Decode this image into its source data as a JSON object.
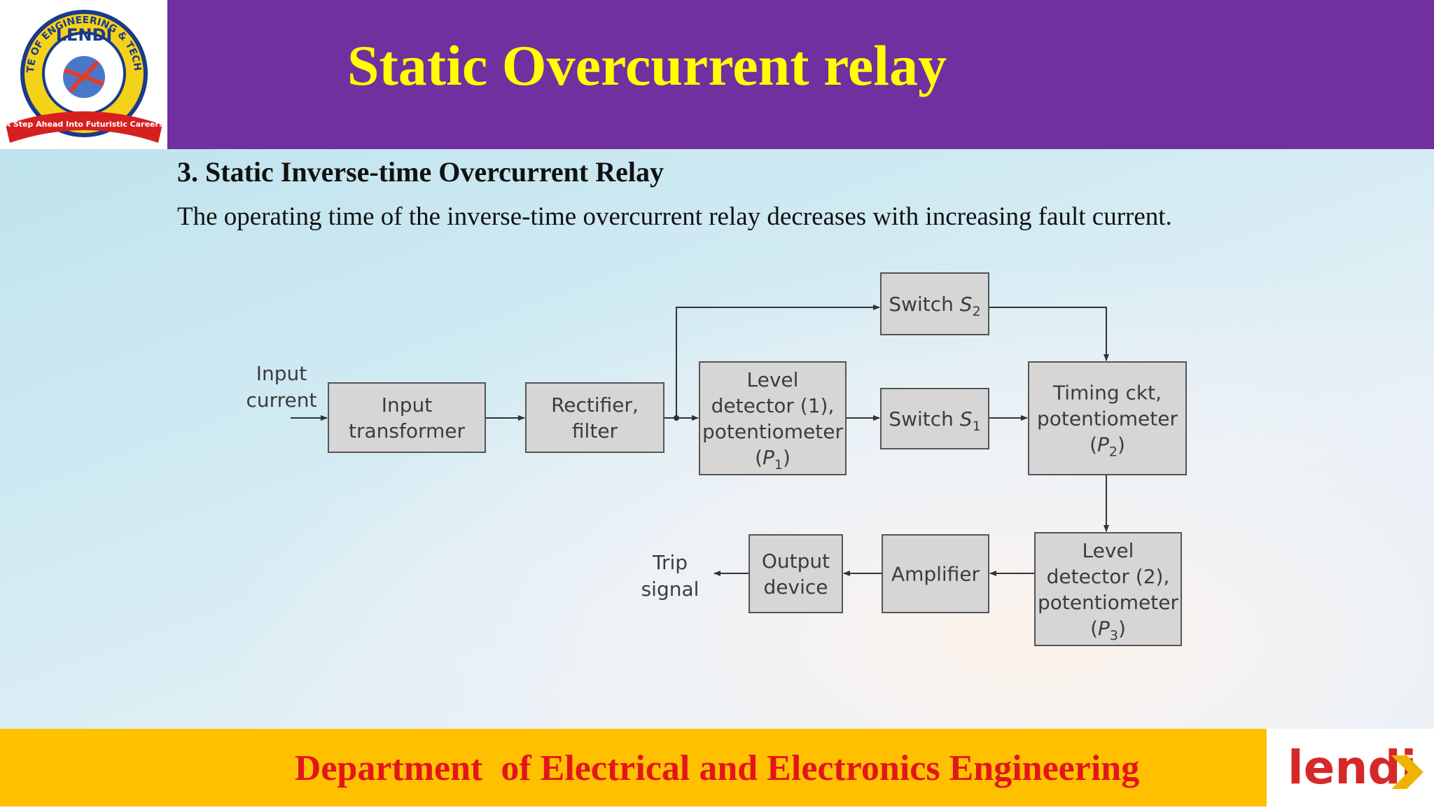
{
  "header": {
    "title": "Static Overcurrent relay"
  },
  "logo": {
    "name": "LENDI",
    "ring": "INSTITUTE OF ENGINEERING & TECHNOLOGY",
    "motto": "A Step Ahead Into Futuristic Careers"
  },
  "content": {
    "heading": "3. Static Inverse-time Overcurrent Relay",
    "text": "The operating time of the inverse-time overcurrent relay decreases with increasing fault current."
  },
  "diagram": {
    "input_label": [
      "Input",
      "current"
    ],
    "output_label": [
      "Trip",
      "signal"
    ],
    "nodes": [
      {
        "lines": [
          "Input",
          "transformer"
        ]
      },
      {
        "lines": [
          "Rectifier,",
          "filter"
        ]
      },
      {
        "lines": [
          "Level",
          "detector (1),",
          "potentiometer",
          {
            "pre": "(",
            "symbol": "P",
            "sub": "1",
            "post": ")"
          }
        ]
      },
      {
        "lines": [
          {
            "pre": "Switch ",
            "symbol": "S",
            "sub": "2"
          }
        ]
      },
      {
        "lines": [
          {
            "pre": "Switch ",
            "symbol": "S",
            "sub": "1"
          }
        ]
      },
      {
        "lines": [
          "Timing ckt,",
          "potentiometer",
          {
            "pre": "(",
            "symbol": "P",
            "sub": "2",
            "post": ")"
          }
        ]
      },
      {
        "lines": [
          "Level",
          "detector (2),",
          "potentiometer",
          {
            "pre": "(",
            "symbol": "P",
            "sub": "3",
            "post": ")"
          }
        ]
      },
      {
        "lines": [
          "Amplifier"
        ]
      },
      {
        "lines": [
          "Output",
          "device"
        ]
      }
    ]
  },
  "footer": {
    "text": "Department  of Electrical and Electronics Engineering",
    "logo": "lendi"
  }
}
